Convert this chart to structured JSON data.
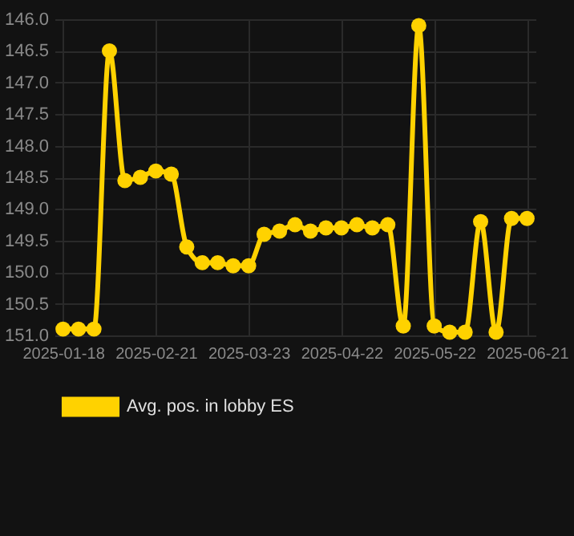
{
  "chart_data": {
    "type": "line",
    "categories": [
      "2025-01-18",
      null,
      null,
      null,
      null,
      null,
      "2025-02-21",
      null,
      null,
      null,
      null,
      null,
      "2025-03-23",
      null,
      null,
      null,
      null,
      null,
      "2025-04-22",
      null,
      null,
      null,
      null,
      null,
      "2025-05-22",
      null,
      null,
      null,
      null,
      null,
      "2025-06-21"
    ],
    "series": [
      {
        "name": "Avg. pos. in lobby ES",
        "color": "#ffd200",
        "values": [
          150.9,
          150.9,
          150.9,
          146.5,
          148.55,
          148.5,
          148.4,
          148.45,
          149.6,
          149.85,
          149.85,
          149.9,
          149.9,
          149.4,
          149.35,
          149.25,
          149.35,
          149.3,
          149.3,
          149.25,
          149.3,
          149.25,
          150.85,
          146.1,
          150.85,
          150.95,
          150.95,
          149.2,
          150.95,
          149.15,
          149.15
        ]
      }
    ],
    "ylim": [
      151.0,
      146.0
    ],
    "yticks": [
      {
        "value": 146,
        "label": "146.0"
      },
      {
        "value": 146.5,
        "label": "146.5"
      },
      {
        "value": 147,
        "label": "147.0"
      },
      {
        "value": 147.5,
        "label": "147.5"
      },
      {
        "value": 148,
        "label": "148.0"
      },
      {
        "value": 148.5,
        "label": "148.5"
      },
      {
        "value": 149,
        "label": "149.0"
      },
      {
        "value": 149.5,
        "label": "149.5"
      },
      {
        "value": 150,
        "label": "150.0"
      },
      {
        "value": 150.5,
        "label": "150.5"
      },
      {
        "value": 151,
        "label": "151.0"
      }
    ],
    "grid": true,
    "legend": "bottom",
    "marker": "circle",
    "line_style": "solid"
  }
}
